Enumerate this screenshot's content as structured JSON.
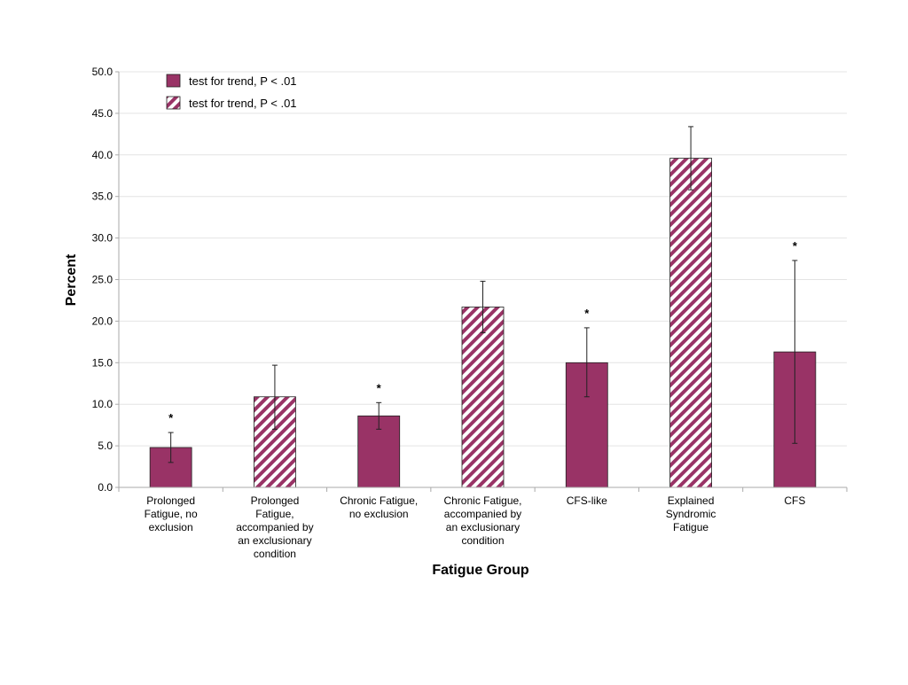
{
  "chart_data": {
    "type": "bar",
    "xlabel": "Fatigue Group",
    "ylabel": "Percent",
    "ylim": [
      0,
      50
    ],
    "yticks": [
      "0.0",
      "5.0",
      "10.0",
      "15.0",
      "20.0",
      "25.0",
      "30.0",
      "35.0",
      "40.0",
      "45.0",
      "50.0"
    ],
    "grid": true,
    "legend_position": "top-left",
    "legend": [
      {
        "label": "test for trend, P < .01",
        "pattern": "solid"
      },
      {
        "label": "test for trend, P < .01",
        "pattern": "hatched"
      }
    ],
    "colors": {
      "bar": "#993366",
      "grid": "#e4e4e4",
      "axis": "#aaaaaa"
    },
    "categories": [
      [
        "Prolonged",
        "Fatigue, no",
        "exclusion"
      ],
      [
        "Prolonged",
        "Fatigue,",
        "accompanied by",
        "an exclusionary",
        "condition"
      ],
      [
        "Chronic Fatigue,",
        "no exclusion"
      ],
      [
        "Chronic Fatigue,",
        "accompanied by",
        "an exclusionary",
        "condition"
      ],
      [
        "CFS-like"
      ],
      [
        "Explained",
        "Syndromic",
        "Fatigue"
      ],
      [
        "CFS"
      ]
    ],
    "bars": [
      {
        "value": 4.8,
        "err_low": 3.0,
        "err_high": 6.6,
        "pattern": "solid",
        "mark": "*"
      },
      {
        "value": 10.9,
        "err_low": 7.0,
        "err_high": 14.7,
        "pattern": "hatched",
        "mark": ""
      },
      {
        "value": 8.6,
        "err_low": 7.0,
        "err_high": 10.2,
        "pattern": "solid",
        "mark": "*"
      },
      {
        "value": 21.7,
        "err_low": 18.6,
        "err_high": 24.8,
        "pattern": "hatched",
        "mark": ""
      },
      {
        "value": 15.0,
        "err_low": 10.9,
        "err_high": 19.2,
        "pattern": "solid",
        "mark": "*"
      },
      {
        "value": 39.6,
        "err_low": 35.8,
        "err_high": 43.4,
        "pattern": "hatched",
        "mark": ""
      },
      {
        "value": 16.3,
        "err_low": 5.3,
        "err_high": 27.3,
        "pattern": "solid",
        "mark": "*"
      }
    ]
  }
}
